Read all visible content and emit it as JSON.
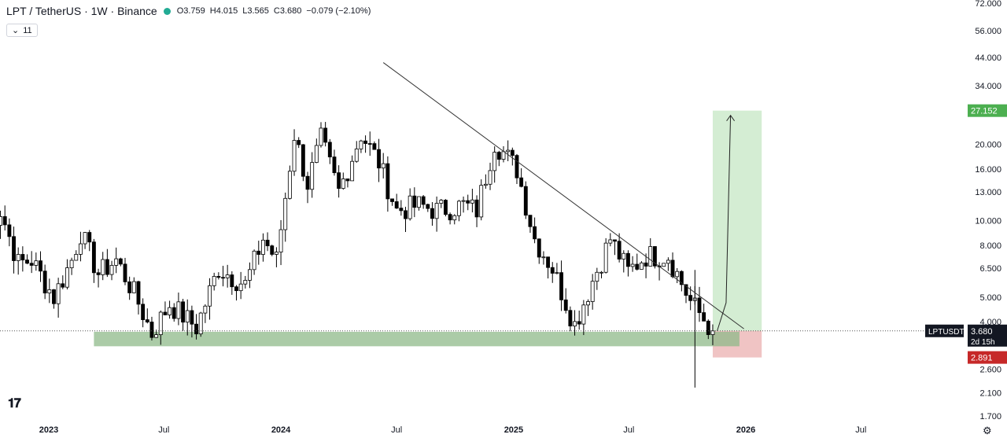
{
  "header": {
    "symbol": "LPT / TetherUS · 1W · Binance",
    "open": "O3.759",
    "high": "H4.015",
    "low": "L3.565",
    "close": "C3.680",
    "change": "−0.079 (−2.10%)",
    "indicator_count": "11"
  },
  "price_tag": {
    "symbol": "LPTUSDT",
    "price": "3.680",
    "countdown": "2d 15h"
  },
  "target_tag": "27.152",
  "stop_tag": "2.891",
  "colors": {
    "up": "#ffffff",
    "down": "#000000",
    "target_zone": "#d4edd3",
    "stop_zone": "#f0c4c4",
    "support_zone": "#8fb98a",
    "target_tag": "#4caf50",
    "stop_tag": "#c62828",
    "price_tag": "#131722"
  },
  "chart_data": {
    "type": "candlestick",
    "title": "LPT / TetherUS · 1W · Binance",
    "yscale": "log",
    "ylim": [
      1.6,
      74
    ],
    "y_ticks": [
      "72.000",
      "56.000",
      "44.000",
      "34.000",
      "20.000",
      "16.000",
      "13.000",
      "10.000",
      "8.000",
      "6.500",
      "5.000",
      "4.000",
      "2.600",
      "2.100",
      "1.700"
    ],
    "y_tick_values": [
      72,
      56,
      44,
      34,
      20,
      16,
      13,
      10,
      8,
      6.5,
      5,
      4,
      2.6,
      2.1,
      1.7
    ],
    "x_ticks": [
      "2023",
      "Jul",
      "2024",
      "Jul",
      "2025",
      "Jul",
      "2026",
      "Jul"
    ],
    "x_tick_times": [
      "2023-01-01",
      "2023-07-01",
      "2024-01-01",
      "2024-07-01",
      "2025-01-01",
      "2025-07-01",
      "2026-01-01",
      "2026-07-01"
    ],
    "candles_anchor": [
      [
        "2022-09-26",
        9.5
      ],
      [
        "2022-10-17",
        11.0
      ],
      [
        "2022-11-14",
        6.8
      ],
      [
        "2022-12-05",
        7.0
      ],
      [
        "2023-01-09",
        5.0
      ],
      [
        "2023-02-06",
        7.0
      ],
      [
        "2023-02-20",
        9.0
      ],
      [
        "2023-03-20",
        6.2
      ],
      [
        "2023-04-17",
        7.0
      ],
      [
        "2023-05-15",
        5.2
      ],
      [
        "2023-06-12",
        3.6
      ],
      [
        "2023-07-10",
        4.7
      ],
      [
        "2023-08-21",
        3.8
      ],
      [
        "2023-09-25",
        6.5
      ],
      [
        "2023-11-06",
        5.6
      ],
      [
        "2023-12-04",
        8.5
      ],
      [
        "2023-12-25",
        7.0
      ],
      [
        "2024-01-22",
        22.0
      ],
      [
        "2024-02-12",
        14.0
      ],
      [
        "2024-03-04",
        21.0
      ],
      [
        "2024-04-01",
        13.0
      ],
      [
        "2024-05-06",
        22.0
      ],
      [
        "2024-06-03",
        17.0
      ],
      [
        "2024-07-01",
        11.0
      ],
      [
        "2024-08-05",
        11.5
      ],
      [
        "2024-09-02",
        11.0
      ],
      [
        "2024-10-14",
        11.5
      ],
      [
        "2024-11-04",
        11.0
      ],
      [
        "2024-12-02",
        20.5
      ],
      [
        "2025-01-06",
        16.0
      ],
      [
        "2025-02-03",
        8.5
      ],
      [
        "2025-03-03",
        6.5
      ],
      [
        "2025-04-07",
        3.9
      ],
      [
        "2025-05-05",
        5.8
      ],
      [
        "2025-06-02",
        8.5
      ],
      [
        "2025-06-30",
        6.3
      ],
      [
        "2025-07-28",
        7.3
      ],
      [
        "2025-09-01",
        7.3
      ],
      [
        "2025-10-06",
        4.8
      ],
      [
        "2025-11-10",
        3.68
      ]
    ],
    "close": 3.68,
    "support_zone": {
      "from": "2023-03-13",
      "to": "2025-12-22",
      "low": 3.2,
      "high": 3.65
    },
    "trendline": {
      "start": [
        "2024-06-10",
        42
      ],
      "end": [
        "2025-12-29",
        3.75
      ]
    },
    "projection_path": [
      [
        "2025-11-17",
        3.68
      ],
      [
        "2025-12-01",
        4.75
      ],
      [
        "2025-12-08",
        26.0
      ]
    ],
    "target_zone": {
      "from": "2025-11-10",
      "to": "2026-01-26",
      "low": 3.68,
      "high": 27.152
    },
    "stop_zone": {
      "from": "2025-11-10",
      "to": "2026-01-26",
      "low": 2.891,
      "high": 3.68
    },
    "wick_min": 2.2
  }
}
